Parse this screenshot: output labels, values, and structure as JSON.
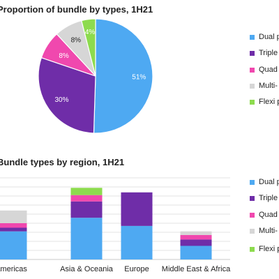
{
  "colors": {
    "dual": "#4EA9F2",
    "triple": "#6F2DA8",
    "quad": "#F048AE",
    "multi": "#D6D6D6",
    "flexi": "#8DDB4E",
    "grid": "#E3E3E3",
    "axis": "#C8C8C8"
  },
  "chart_data": [
    {
      "type": "pie",
      "title": "Proportion of bundle by types, 1H21",
      "slices": [
        {
          "name": "Dual p",
          "value": 51,
          "label": "51%",
          "color": "#4EA9F2"
        },
        {
          "name": "Triple",
          "value": 30,
          "label": "30%",
          "color": "#6F2DA8"
        },
        {
          "name": "Quad",
          "value": 8,
          "label": "8%",
          "color": "#F048AE"
        },
        {
          "name": "Multi-",
          "value": 8,
          "label": "8%",
          "color": "#D6D6D6"
        },
        {
          "name": "Flexi p",
          "value": 4,
          "label": "4%",
          "color": "#8DDB4E"
        }
      ],
      "legend": [
        "Dual p",
        "Triple",
        "Quad",
        "Multi-",
        "Flexi p"
      ],
      "legend_position": "right"
    },
    {
      "type": "bar",
      "stacked": true,
      "title": "Bundle types by region, 1H21",
      "categories": [
        "Americas",
        "Asia & Oceania",
        "Europe",
        "Middle East & Africa"
      ],
      "series": [
        {
          "name": "Dual p",
          "color": "#4EA9F2",
          "values": [
            31,
            46,
            37,
            15
          ]
        },
        {
          "name": "Triple",
          "color": "#6F2DA8",
          "values": [
            4,
            18,
            37,
            7
          ]
        },
        {
          "name": "Quad p",
          "color": "#F048AE",
          "values": [
            5,
            7,
            0,
            5
          ]
        },
        {
          "name": "Multi-",
          "color": "#D6D6D6",
          "values": [
            14,
            0,
            0,
            4
          ]
        },
        {
          "name": "Flexi p",
          "color": "#8DDB4E",
          "values": [
            0,
            8,
            0,
            0
          ]
        }
      ],
      "ylim": [
        0,
        90
      ],
      "grid": true,
      "legend_position": "right"
    }
  ]
}
